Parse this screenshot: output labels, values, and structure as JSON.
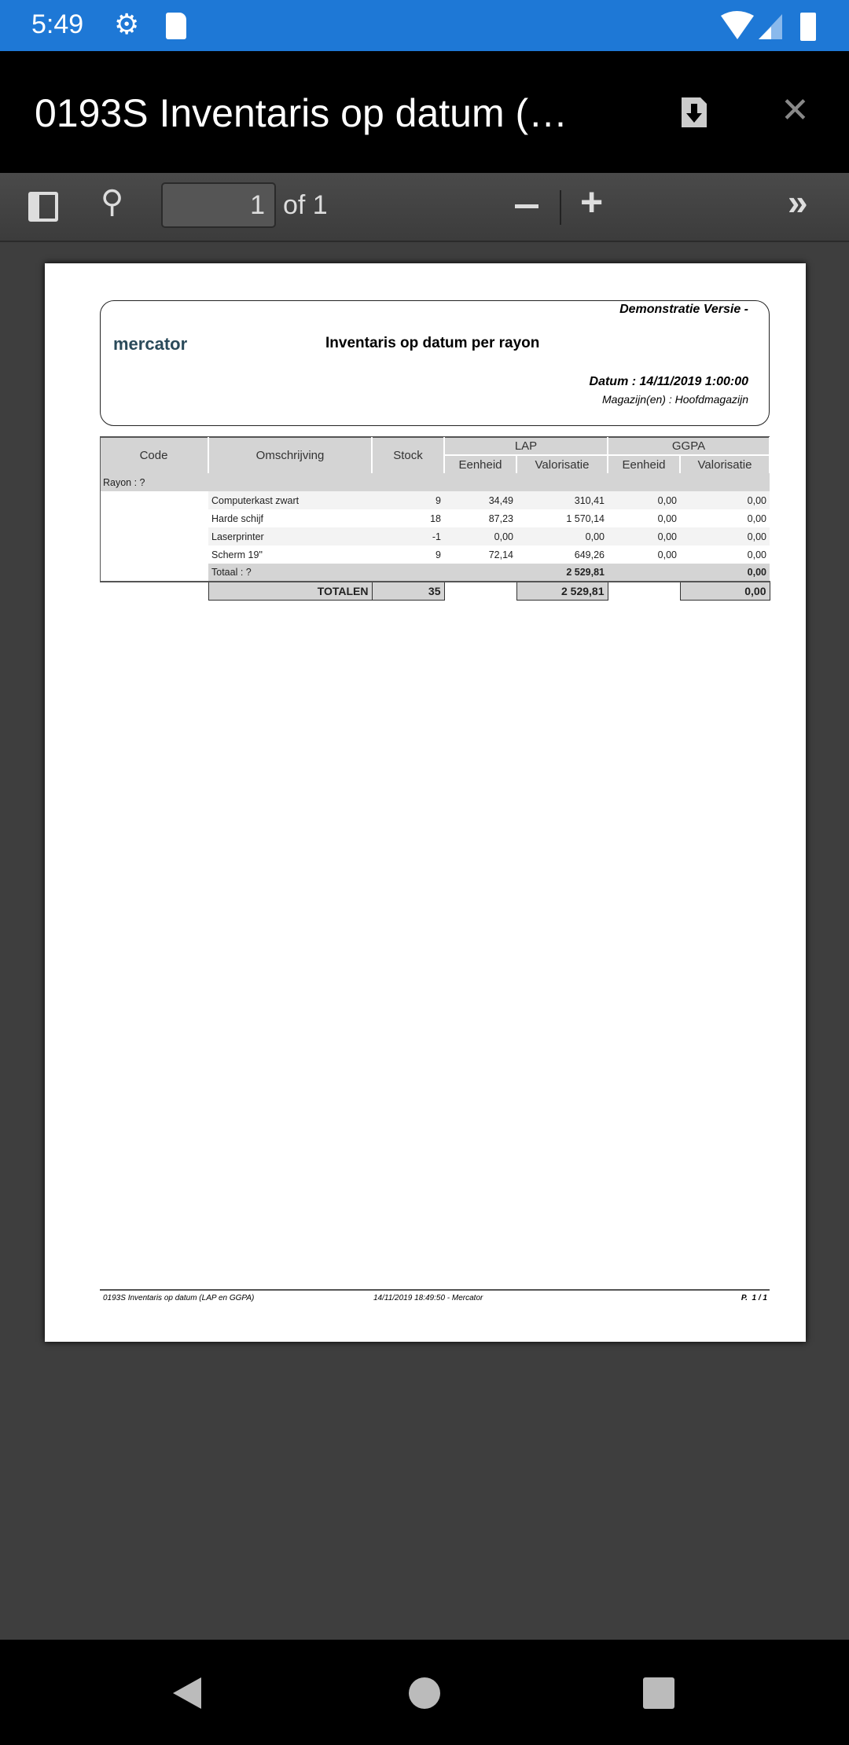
{
  "status_bar": {
    "time": "5:49",
    "icons": [
      "gear-icon",
      "sd-card-icon",
      "wifi-icon",
      "signal-icon",
      "battery-icon"
    ],
    "color": "#1e78d6"
  },
  "app_bar": {
    "title": "0193S Inventaris op datum (…",
    "icons": [
      "download-icon",
      "close-icon"
    ]
  },
  "toolbar": {
    "page_current": "1",
    "page_of": "of 1",
    "icons": [
      "sidebar-toggle-icon",
      "search-icon",
      "zoom-out-icon",
      "zoom-in-icon",
      "more-tools-icon"
    ]
  },
  "document": {
    "demo": "Demonstratie Versie -",
    "logo": "mercator",
    "title": "Inventaris op datum per rayon",
    "datum": "Datum : 14/11/2019 1:00:00",
    "magazijn": "Magazijn(en) : Hoofdmagazijn",
    "headers": {
      "code": "Code",
      "omschrijving": "Omschrijving",
      "stock": "Stock",
      "lap": "LAP",
      "ggpa": "GGPA",
      "eenheid": "Eenheid",
      "valorisatie": "Valorisatie"
    },
    "rayon": "Rayon : ?",
    "rows": [
      {
        "omschrijving": "Computerkast zwart",
        "stock": "9",
        "lap_eenheid": "34,49",
        "lap_val": "310,41",
        "ggpa_eenheid": "0,00",
        "ggpa_val": "0,00"
      },
      {
        "omschrijving": "Harde schijf",
        "stock": "18",
        "lap_eenheid": "87,23",
        "lap_val": "1 570,14",
        "ggpa_eenheid": "0,00",
        "ggpa_val": "0,00"
      },
      {
        "omschrijving": "Laserprinter",
        "stock": "-1",
        "lap_eenheid": "0,00",
        "lap_val": "0,00",
        "ggpa_eenheid": "0,00",
        "ggpa_val": "0,00"
      },
      {
        "omschrijving": "Scherm 19\"",
        "stock": "9",
        "lap_eenheid": "72,14",
        "lap_val": "649,26",
        "ggpa_eenheid": "0,00",
        "ggpa_val": "0,00"
      }
    ],
    "totaal": {
      "label": "Totaal : ?",
      "lap_val": "2 529,81",
      "ggpa_val": "0,00"
    },
    "totalen": {
      "label": "TOTALEN",
      "stock": "35",
      "lap_val": "2 529,81",
      "ggpa_val": "0,00"
    },
    "footer": {
      "left": "0193S Inventaris op datum (LAP en GGPA)",
      "center": "14/11/2019 18:49:50 - Mercator",
      "right": "P.  1 / 1"
    }
  }
}
